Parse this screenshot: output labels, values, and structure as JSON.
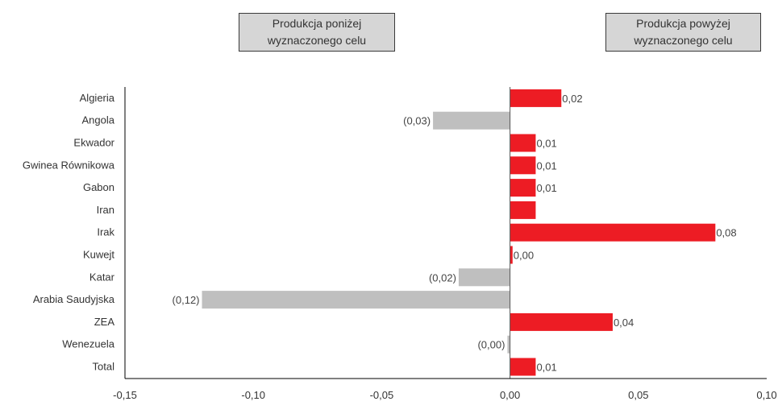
{
  "legend": {
    "below_label": "Produkcja poniżej wyznaczonego celu",
    "above_label": "Produkcja powyżej wyznaczonego celu"
  },
  "colors": {
    "positive": "#ED1C24",
    "negative": "#BFBFBF",
    "axis": "#000000"
  },
  "chart_data": {
    "type": "bar",
    "orientation": "horizontal",
    "categories": [
      "Algieria",
      "Angola",
      "Ekwador",
      "Gwinea Równikowa",
      "Gabon",
      "Iran",
      "Irak",
      "Kuwejt",
      "Katar",
      "Arabia Saudyjska",
      "ZEA",
      "Wenezuela",
      "Total"
    ],
    "values": [
      0.02,
      -0.03,
      0.01,
      0.01,
      0.01,
      0.01,
      0.08,
      0.001,
      -0.02,
      -0.12,
      0.04,
      -0.001,
      0.01
    ],
    "data_labels": [
      "0,02",
      "(0,03)",
      "0,01",
      "0,01",
      "0,01",
      "",
      "0,08",
      "0,00",
      "(0,02)",
      "(0,12)",
      "0,04",
      "(0,00)",
      "0,01"
    ],
    "xlim": [
      -0.15,
      0.1
    ],
    "xticks": [
      -0.15,
      -0.1,
      -0.05,
      0.0,
      0.05,
      0.1
    ],
    "xtick_labels": [
      "-0,15",
      "-0,10",
      "-0,05",
      "0,00",
      "0,05",
      "0,10"
    ],
    "grid": false
  }
}
